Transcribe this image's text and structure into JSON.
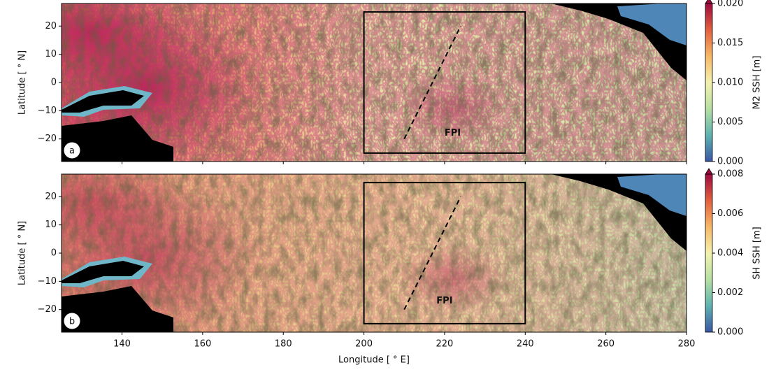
{
  "chart_data": [
    {
      "type": "map",
      "panel_label": "a",
      "ylabel": "Latitude [ ° N]",
      "xlim": [
        125,
        280
      ],
      "xticks": [
        140,
        160,
        180,
        200,
        220,
        240,
        260,
        280
      ],
      "ylim": [
        -28,
        28
      ],
      "yticks": [
        {
          "value": -20,
          "label": "−20"
        },
        {
          "value": -10,
          "label": "−10"
        },
        0,
        10,
        20
      ],
      "box": {
        "x": [
          200,
          240
        ],
        "y": [
          -25,
          25
        ]
      },
      "line": {
        "x": [
          210,
          224
        ],
        "y": [
          -20,
          20
        ]
      },
      "annotations": [
        {
          "text": "FPI",
          "x": 222,
          "y": -18
        }
      ],
      "colormap": [
        "#3a56a6",
        "#5fb3b0",
        "#b6e0a3",
        "#f3f1ae",
        "#f7b867",
        "#e2603f",
        "#9e0b3f"
      ],
      "colorbar": {
        "label": "M2 SSH [m]",
        "lim": [
          0,
          0.02
        ],
        "ticks": [
          {
            "value": 0,
            "label": "0.000"
          },
          {
            "value": 0.005,
            "label": "0.005"
          },
          {
            "value": 0.01,
            "label": "0.010"
          },
          {
            "value": 0.015,
            "label": "0.015"
          },
          {
            "value": 0.02,
            "label": "0.020"
          }
        ]
      }
    },
    {
      "type": "map",
      "panel_label": "b",
      "ylabel": "Latitude [ ° N]",
      "xlabel": "Longitude [ ° E]",
      "xlim": [
        125,
        280
      ],
      "xticks": [
        140,
        160,
        180,
        200,
        220,
        240,
        260,
        280
      ],
      "ylim": [
        -28,
        28
      ],
      "yticks": [
        {
          "value": -20,
          "label": "−20"
        },
        {
          "value": -10,
          "label": "−10"
        },
        0,
        10,
        20
      ],
      "box": {
        "x": [
          200,
          240
        ],
        "y": [
          -25,
          25
        ]
      },
      "line": {
        "x": [
          210,
          224
        ],
        "y": [
          -20,
          20
        ]
      },
      "annotations": [
        {
          "text": "FPI",
          "x": 220,
          "y": -17
        }
      ],
      "colormap": [
        "#3a56a6",
        "#5fb3b0",
        "#b6e0a3",
        "#f3f1ae",
        "#f7b867",
        "#e2603f",
        "#9e0b3f"
      ],
      "colorbar": {
        "label": "SH SSH [m]",
        "lim": [
          0,
          0.008
        ],
        "ticks": [
          {
            "value": 0,
            "label": "0.000"
          },
          {
            "value": 0.002,
            "label": "0.002"
          },
          {
            "value": 0.004,
            "label": "0.004"
          },
          {
            "value": 0.006,
            "label": "0.006"
          },
          {
            "value": 0.008,
            "label": "0.008"
          }
        ]
      }
    }
  ]
}
